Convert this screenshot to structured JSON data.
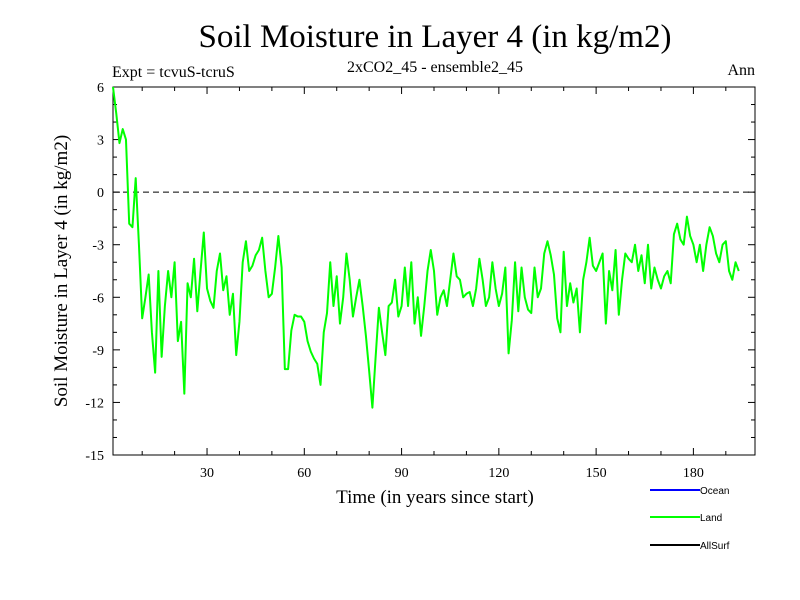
{
  "chart_data": {
    "type": "line",
    "title": "Soil Moisture in Layer 4 (in kg/m2)",
    "subtitle": "2xCO2_45 - ensemble2_45",
    "left_label": "Expt = tcvuS-tcruS",
    "right_label": "Ann",
    "xlabel": "Time (in years since start)",
    "ylabel": "Soil Moisture in Layer 4 (in kg/m2)",
    "xlim": [
      1,
      199
    ],
    "ylim": [
      -15,
      6
    ],
    "x_ticks": [
      30,
      60,
      90,
      120,
      150,
      180
    ],
    "y_ticks": [
      6,
      3,
      0,
      -3,
      -6,
      -9,
      -12,
      -15
    ],
    "reference_line": {
      "y": 0,
      "style": "dashed"
    },
    "legend_placement": "bottom-right",
    "legend": [
      {
        "name": "Ocean",
        "color": "#0000ff"
      },
      {
        "name": "Land",
        "color": "#00ff00"
      },
      {
        "name": "AllSurf",
        "color": "#000000"
      }
    ],
    "series": [
      {
        "name": "Land",
        "color": "#00ff00",
        "x_start": 1,
        "x_step": 1,
        "values": [
          6.0,
          4.5,
          2.8,
          3.6,
          3.0,
          -1.8,
          -2.0,
          0.8,
          -3.0,
          -7.2,
          -6.0,
          -4.7,
          -8.0,
          -10.3,
          -4.5,
          -9.4,
          -6.5,
          -4.5,
          -6.0,
          -4.0,
          -8.5,
          -7.4,
          -11.5,
          -5.2,
          -6.0,
          -3.8,
          -6.8,
          -4.5,
          -2.3,
          -5.5,
          -6.2,
          -6.6,
          -4.5,
          -3.5,
          -5.6,
          -4.8,
          -7.0,
          -5.8,
          -9.3,
          -7.4,
          -4.0,
          -2.8,
          -4.5,
          -4.2,
          -3.6,
          -3.3,
          -2.6,
          -4.5,
          -6.0,
          -5.8,
          -4.3,
          -2.5,
          -4.3,
          -10.1,
          -10.1,
          -7.9,
          -7.0,
          -7.1,
          -7.1,
          -7.4,
          -8.5,
          -9.1,
          -9.5,
          -9.8,
          -11.0,
          -8.0,
          -6.9,
          -4.0,
          -6.5,
          -4.8,
          -7.5,
          -6.0,
          -3.5,
          -5.0,
          -7.1,
          -6.0,
          -5.0,
          -6.5,
          -8.2,
          -10.2,
          -12.3,
          -9.4,
          -6.6,
          -8.0,
          -9.3,
          -6.5,
          -6.3,
          -5.0,
          -7.1,
          -6.5,
          -4.3,
          -6.5,
          -4.0,
          -7.5,
          -6.0,
          -8.2,
          -6.5,
          -4.5,
          -3.3,
          -4.5,
          -7.0,
          -6.0,
          -5.6,
          -6.5,
          -5.0,
          -3.5,
          -4.8,
          -5.0,
          -6.0,
          -5.8,
          -5.7,
          -6.5,
          -5.5,
          -3.8,
          -5.0,
          -6.5,
          -6.0,
          -4.0,
          -5.5,
          -6.5,
          -5.8,
          -4.3,
          -9.2,
          -7.3,
          -4.0,
          -6.8,
          -4.3,
          -6.0,
          -6.7,
          -6.9,
          -4.3,
          -6.0,
          -5.5,
          -3.5,
          -2.8,
          -3.6,
          -4.7,
          -7.2,
          -8.0,
          -3.4,
          -6.5,
          -5.2,
          -6.3,
          -5.5,
          -8.0,
          -5.0,
          -4.0,
          -2.6,
          -4.2,
          -4.5,
          -4.0,
          -3.5,
          -7.5,
          -4.5,
          -5.6,
          -3.3,
          -7.0,
          -5.0,
          -3.5,
          -3.8,
          -4.0,
          -3.0,
          -4.5,
          -3.6,
          -5.2,
          -3.0,
          -5.5,
          -4.3,
          -5.0,
          -5.5,
          -4.8,
          -4.5,
          -5.2,
          -2.4,
          -1.8,
          -2.7,
          -3.0,
          -1.4,
          -2.5,
          -3.0,
          -4.0,
          -3.0,
          -4.5,
          -3.0,
          -2.0,
          -2.5,
          -3.5,
          -4.0,
          -3.0,
          -2.8,
          -4.5,
          -5.0,
          -4.0,
          -4.5
        ]
      }
    ]
  }
}
